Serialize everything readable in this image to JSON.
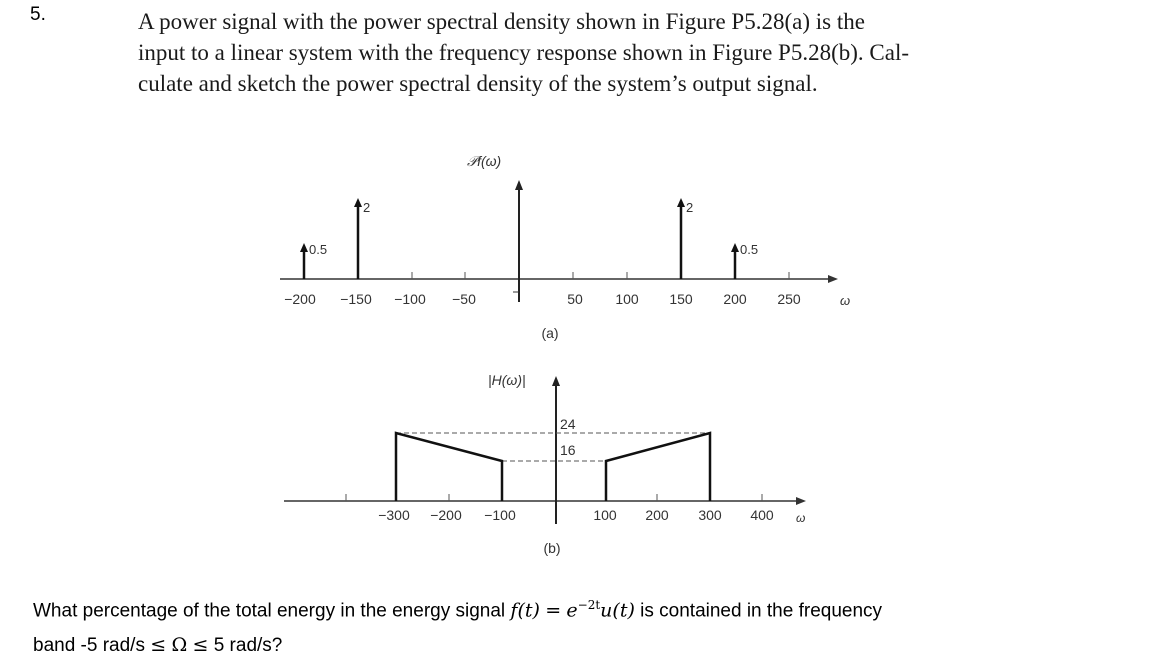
{
  "question_number": "5.",
  "problem_lines": [
    "A power signal with the power spectral density shown in Figure P5.28(a) is the",
    "input to a linear system with the frequency response shown in Figure P5.28(b). Cal-",
    "culate and sketch the power spectral density of the system’s output signal."
  ],
  "figure_a": {
    "ylabel": "𝒫f(ω)",
    "xlabel": "ω",
    "caption": "(a)",
    "tick_labels": [
      "−200",
      "−150",
      "−100",
      "−50",
      "50",
      "100",
      "150",
      "200",
      "250"
    ],
    "impulse_labels": {
      "left_small": "0.5",
      "left_big": "2",
      "right_big": "2",
      "right_small": "0.5"
    }
  },
  "figure_b": {
    "ylabel": "|H(ω)|",
    "xlabel": "ω",
    "caption": "(b)",
    "tick_labels": [
      "−300",
      "−200",
      "−100",
      "100",
      "200",
      "300",
      "400"
    ],
    "level_labels": [
      "24",
      "16"
    ]
  },
  "chart_data": [
    {
      "type": "line",
      "title": "(a)",
      "ylabel": "𝒫f(ω)",
      "xlabel": "ω",
      "series": [
        {
          "x": [
            -200,
            -150,
            150,
            200
          ],
          "y": [
            0.5,
            2,
            2,
            0.5
          ]
        }
      ]
    },
    {
      "type": "line",
      "title": "(b)",
      "ylabel": "|H(ω)|",
      "xlabel": "ω",
      "series": [
        {
          "x": [
            -300,
            -300,
            -100,
            -100
          ],
          "y": [
            0,
            24,
            16,
            0
          ]
        },
        {
          "x": [
            100,
            100,
            300,
            300
          ],
          "y": [
            0,
            16,
            24,
            0
          ]
        }
      ]
    }
  ],
  "question2": {
    "part1": "What percentage of the total energy in the energy signal ",
    "f_of_t": "f(t)",
    "equals": "=",
    "exp_base": "e",
    "exp_power": "−2t",
    "unit_step": "u(t)",
    "part2": " is contained in the frequency",
    "line2_start": "band -5 rad/s ",
    "le1": "≤",
    "omega": "Ω",
    "le2": "≤",
    "line2_end": "5  rad/s?"
  }
}
